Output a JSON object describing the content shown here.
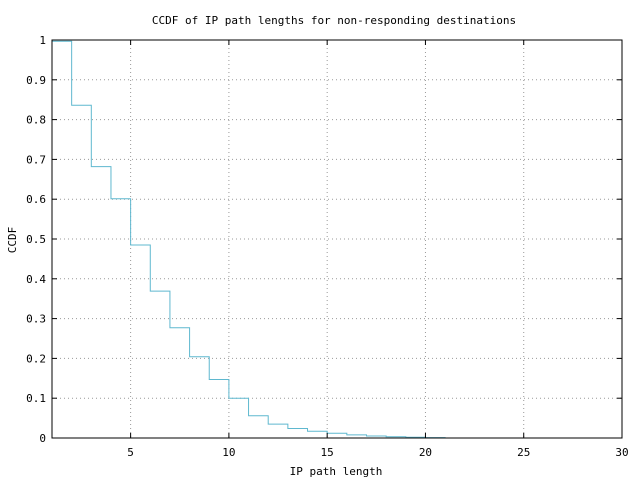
{
  "chart_data": {
    "type": "line",
    "step": true,
    "title": "CCDF of IP path lengths for non-responding destinations",
    "xlabel": "IP path length",
    "ylabel": "CCDF",
    "xlim": [
      1,
      30
    ],
    "ylim": [
      0,
      1
    ],
    "xticks": [
      5,
      10,
      15,
      20,
      25,
      30
    ],
    "yticks": [
      0,
      0.1,
      0.2,
      0.3,
      0.4,
      0.5,
      0.6,
      0.7,
      0.8,
      0.9,
      1
    ],
    "grid": true,
    "line_color": "#5fb8cf",
    "series": [
      {
        "x": [
          1,
          2,
          3,
          4,
          5,
          6,
          7,
          8,
          9,
          10,
          11,
          12,
          13,
          14,
          15,
          16,
          17,
          18,
          19,
          20,
          21
        ],
        "y": [
          0.997,
          0.836,
          0.682,
          0.601,
          0.485,
          0.369,
          0.277,
          0.204,
          0.147,
          0.1,
          0.056,
          0.035,
          0.024,
          0.017,
          0.012,
          0.008,
          0.005,
          0.003,
          0.002,
          0.001,
          0
        ]
      }
    ]
  }
}
